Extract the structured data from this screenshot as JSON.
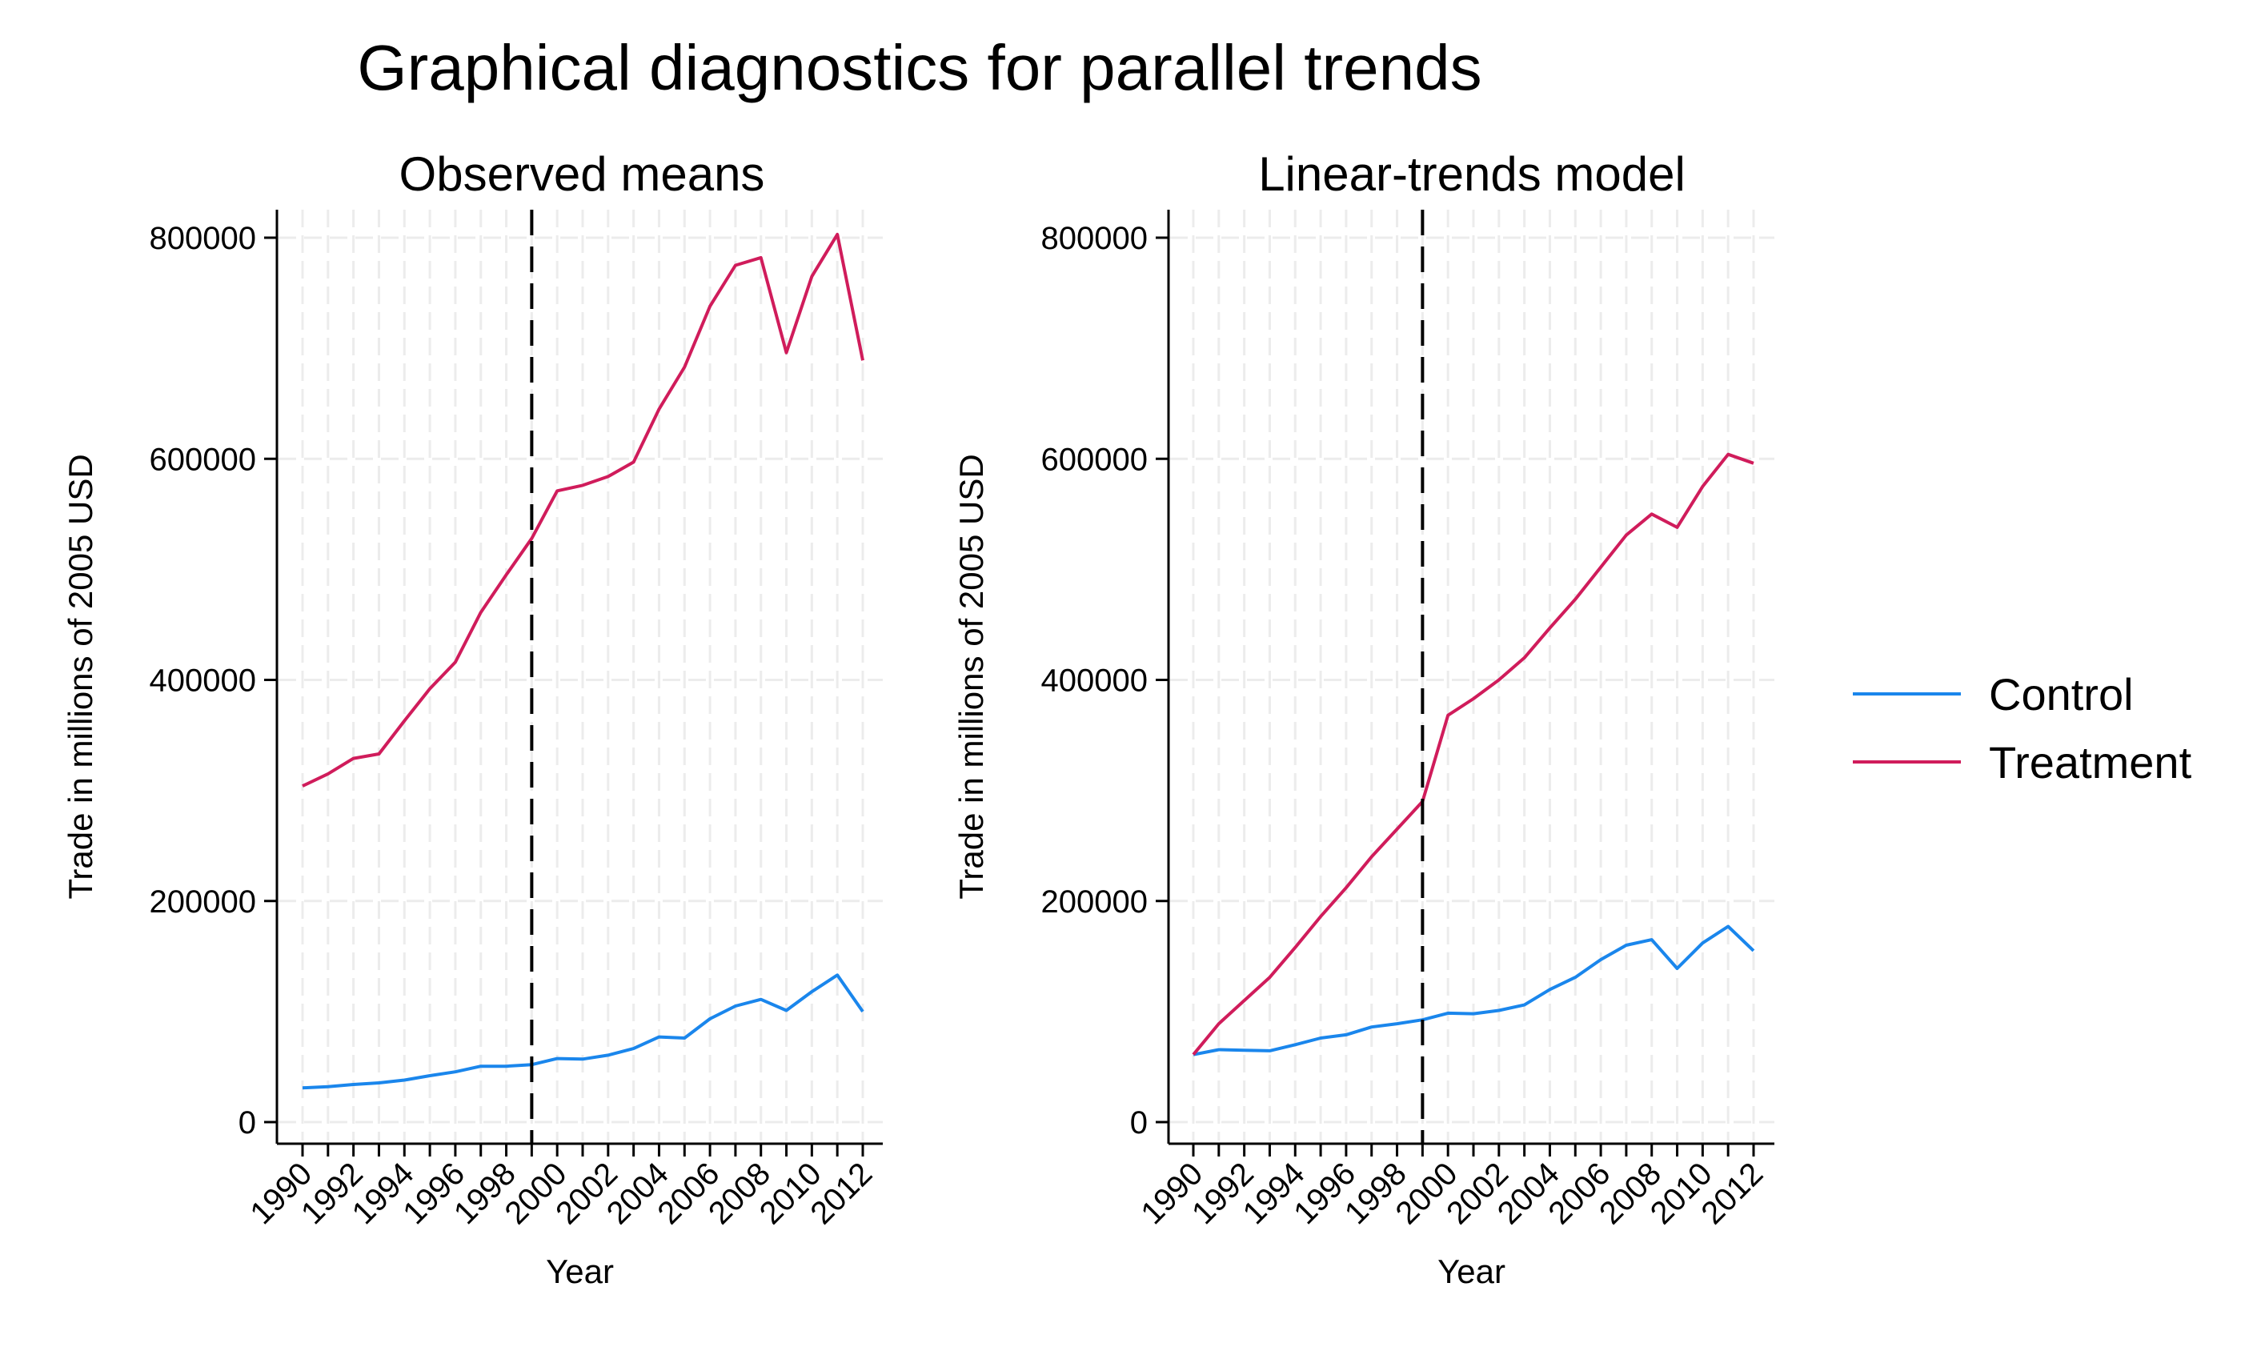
{
  "figure": {
    "title": "Graphical diagnostics for parallel trends"
  },
  "legend": {
    "placement": "right",
    "items": [
      {
        "label": "Control",
        "color": "#1a86ec"
      },
      {
        "label": "Treatment",
        "color": "#d01c5b"
      }
    ]
  },
  "chart_data": [
    {
      "type": "line",
      "title": "Observed means",
      "xlabel": "Year",
      "ylabel": "Trade in millions of 2005 USD",
      "xlim": [
        1990,
        2012
      ],
      "ylim": [
        0,
        800000
      ],
      "x_ticks": [
        "1990",
        "1992",
        "1994",
        "1996",
        "1998",
        "2000",
        "2002",
        "2004",
        "2006",
        "2008",
        "2010",
        "2012"
      ],
      "y_ticks": [
        "0",
        "200000",
        "400000",
        "600000",
        "800000"
      ],
      "grid": true,
      "vline": 1999,
      "x": [
        1990,
        1991,
        1992,
        1993,
        1994,
        1995,
        1996,
        1997,
        1998,
        1999,
        2000,
        2001,
        2002,
        2003,
        2004,
        2005,
        2006,
        2007,
        2008,
        2009,
        2010,
        2011,
        2012
      ],
      "series": [
        {
          "name": "Control",
          "color": "#1a86ec",
          "values": [
            31000,
            32000,
            34000,
            35500,
            38000,
            42000,
            45500,
            50500,
            50500,
            52000,
            57500,
            57000,
            60500,
            66500,
            77000,
            76000,
            93500,
            105000,
            111000,
            101000,
            118000,
            133000,
            100000
          ]
        },
        {
          "name": "Treatment",
          "color": "#d01c5b",
          "values": [
            304000,
            315000,
            329000,
            333000,
            363000,
            392000,
            416000,
            461000,
            495000,
            528000,
            571000,
            576000,
            584000,
            597000,
            645000,
            683000,
            738000,
            775000,
            782000,
            696000,
            765000,
            803000,
            689000
          ]
        }
      ]
    },
    {
      "type": "line",
      "title": "Linear-trends model",
      "xlabel": "Year",
      "ylabel": "Trade in millions of 2005 USD",
      "xlim": [
        1990,
        2012
      ],
      "ylim": [
        0,
        800000
      ],
      "x_ticks": [
        "1990",
        "1992",
        "1994",
        "1996",
        "1998",
        "2000",
        "2002",
        "2004",
        "2006",
        "2008",
        "2010",
        "2012"
      ],
      "y_ticks": [
        "0",
        "200000",
        "400000",
        "600000",
        "800000"
      ],
      "grid": true,
      "vline": 1999,
      "x": [
        1990,
        1991,
        1992,
        1993,
        1994,
        1995,
        1996,
        1997,
        1998,
        1999,
        2000,
        2001,
        2002,
        2003,
        2004,
        2005,
        2006,
        2007,
        2008,
        2009,
        2010,
        2011,
        2012
      ],
      "series": [
        {
          "name": "Control",
          "color": "#1a86ec",
          "values": [
            61000,
            65500,
            65000,
            64500,
            70000,
            76000,
            79000,
            86000,
            89000,
            92500,
            98500,
            98000,
            101000,
            106000,
            120000,
            131000,
            147000,
            160000,
            165000,
            139000,
            162000,
            177000,
            155000
          ]
        },
        {
          "name": "Treatment",
          "color": "#d01c5b",
          "values": [
            61000,
            89000,
            110000,
            131000,
            158000,
            186000,
            212000,
            240000,
            265000,
            290000,
            368000,
            383000,
            400000,
            420000,
            447000,
            473000,
            502000,
            531000,
            550000,
            538000,
            575000,
            604000,
            596000
          ]
        }
      ]
    }
  ]
}
